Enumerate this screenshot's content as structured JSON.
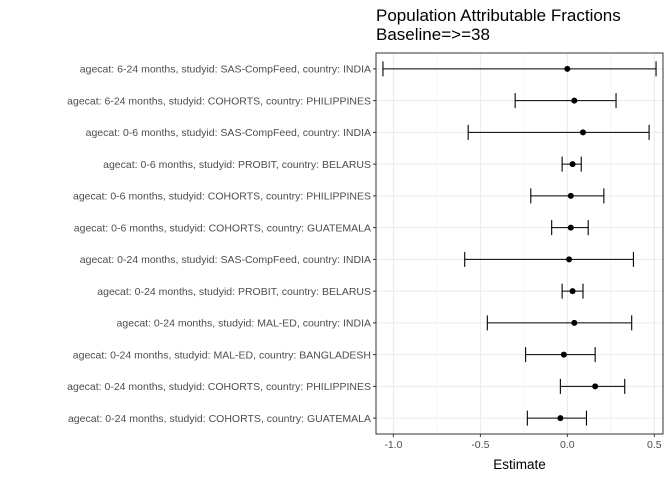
{
  "chart_data": {
    "type": "forest",
    "title": "Population Attributable Fractions",
    "subtitle": "Baseline=>=38",
    "xlabel": "Estimate",
    "xlim": [
      -1.1,
      0.55
    ],
    "xticks": [
      -1.0,
      -0.5,
      0.0,
      0.5
    ],
    "xtick_labels": [
      "-1.0",
      "-0.5",
      "0.0",
      "0.5"
    ],
    "grid": true,
    "rows": [
      {
        "label": "agecat: 6-24 months, studyid: SAS-CompFeed, country: INDIA",
        "estimate": 0.0,
        "lower": -1.06,
        "upper": 0.51
      },
      {
        "label": "agecat: 6-24 months, studyid: COHORTS, country: PHILIPPINES",
        "estimate": 0.04,
        "lower": -0.3,
        "upper": 0.28
      },
      {
        "label": "agecat: 0-6 months, studyid: SAS-CompFeed, country: INDIA",
        "estimate": 0.09,
        "lower": -0.57,
        "upper": 0.47
      },
      {
        "label": "agecat: 0-6 months, studyid: PROBIT, country: BELARUS",
        "estimate": 0.03,
        "lower": -0.03,
        "upper": 0.08
      },
      {
        "label": "agecat: 0-6 months, studyid: COHORTS, country: PHILIPPINES",
        "estimate": 0.02,
        "lower": -0.21,
        "upper": 0.21
      },
      {
        "label": "agecat: 0-6 months, studyid: COHORTS, country: GUATEMALA",
        "estimate": 0.02,
        "lower": -0.09,
        "upper": 0.12
      },
      {
        "label": "agecat: 0-24 months, studyid: SAS-CompFeed, country: INDIA",
        "estimate": 0.01,
        "lower": -0.59,
        "upper": 0.38
      },
      {
        "label": "agecat: 0-24 months, studyid: PROBIT, country: BELARUS",
        "estimate": 0.03,
        "lower": -0.03,
        "upper": 0.09
      },
      {
        "label": "agecat: 0-24 months, studyid: MAL-ED, country: INDIA",
        "estimate": 0.04,
        "lower": -0.46,
        "upper": 0.37
      },
      {
        "label": "agecat: 0-24 months, studyid: MAL-ED, country: BANGLADESH",
        "estimate": -0.02,
        "lower": -0.24,
        "upper": 0.16
      },
      {
        "label": "agecat: 0-24 months, studyid: COHORTS, country: PHILIPPINES",
        "estimate": 0.16,
        "lower": -0.04,
        "upper": 0.33
      },
      {
        "label": "agecat: 0-24 months, studyid: COHORTS, country: GUATEMALA",
        "estimate": -0.04,
        "lower": -0.23,
        "upper": 0.11
      }
    ]
  }
}
